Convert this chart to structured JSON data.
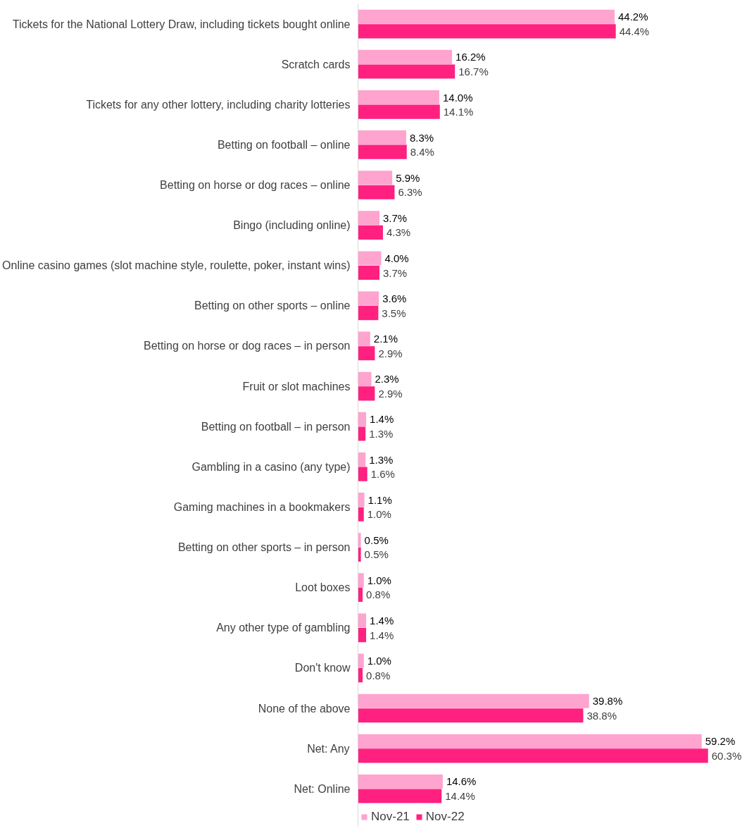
{
  "chart_data": {
    "type": "bar",
    "orientation": "horizontal",
    "tick_labels": "y",
    "grid": false,
    "legend": "bottom",
    "categories": [
      "Tickets for the National Lottery Draw, including tickets bought online",
      "Scratch cards",
      "Tickets for any other lottery, including charity lotteries",
      "Betting on football – online",
      "Betting on horse or dog races – online",
      "Bingo (including online)",
      "Online casino games (slot machine style, roulette, poker, instant wins)",
      "Betting on other sports – online",
      "Betting on horse or dog races – in person",
      "Fruit or slot machines",
      "Betting on football – in person",
      "Gambling in a casino (any type)",
      "Gaming machines in a bookmakers",
      "Betting on other sports – in person",
      "Loot boxes",
      "Any other type of gambling",
      "Don't know",
      "None of the above",
      "Net: Any",
      "Net: Online"
    ],
    "series": [
      {
        "name": "Nov-21",
        "color": "#ffa3cf",
        "values": [
          44.2,
          16.2,
          14.0,
          8.3,
          5.9,
          3.7,
          4.0,
          3.6,
          2.1,
          2.3,
          1.4,
          1.3,
          1.1,
          0.5,
          1.0,
          1.4,
          1.0,
          39.8,
          59.2,
          14.6
        ],
        "value_labels": [
          "44.2%",
          "16.2%",
          "14.0%",
          "8.3%",
          "5.9%",
          "3.7%",
          "4.0%",
          "3.6%",
          "2.1%",
          "2.3%",
          "1.4%",
          "1.3%",
          "1.1%",
          "0.5%",
          "1.0%",
          "1.4%",
          "1.0%",
          "39.8%",
          "59.2%",
          "14.6%"
        ]
      },
      {
        "name": "Nov-22",
        "color": "#ff2080",
        "values": [
          44.4,
          16.7,
          14.1,
          8.4,
          6.3,
          4.3,
          3.7,
          3.5,
          2.9,
          2.9,
          1.3,
          1.6,
          1.0,
          0.5,
          0.8,
          1.4,
          0.8,
          38.8,
          60.3,
          14.4
        ],
        "value_labels": [
          "44.4%",
          "16.7%",
          "14.1%",
          "8.4%",
          "6.3%",
          "4.3%",
          "3.7%",
          "3.5%",
          "2.9%",
          "2.9%",
          "1.3%",
          "1.6%",
          "1.0%",
          "0.5%",
          "0.8%",
          "1.4%",
          "0.8%",
          "38.8%",
          "60.3%",
          "14.4%"
        ]
      }
    ]
  }
}
